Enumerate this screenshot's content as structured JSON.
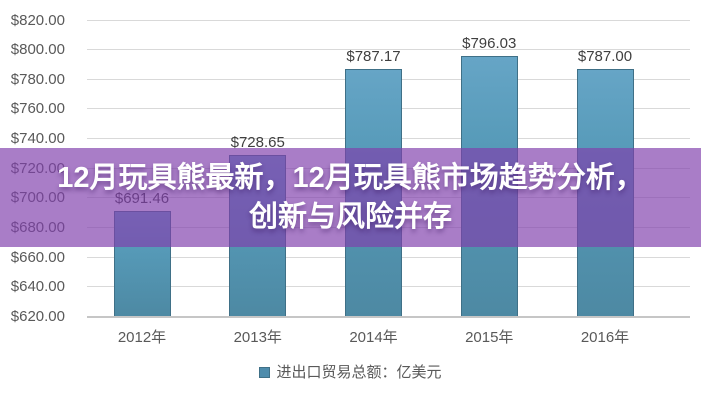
{
  "page": {
    "background": "#ffffff"
  },
  "banner": {
    "line1": "12月玩具熊最新，12月玩具熊市场趋势分析，",
    "line2": "创新与风险并存",
    "background": "rgba(128,63,172,0.68)",
    "text_color": "#ffffff"
  },
  "chart_data": {
    "type": "bar",
    "title": "",
    "xlabel": "",
    "ylabel": "",
    "categories": [
      "2012年",
      "2013年",
      "2014年",
      "2015年",
      "2016年"
    ],
    "values": [
      691.46,
      728.65,
      787.17,
      796.03,
      787.0
    ],
    "value_labels": [
      "$691.46",
      "$728.65",
      "$787.17",
      "$796.03",
      "$787.00"
    ],
    "ylim": [
      620,
      820
    ],
    "y_ticks": [
      820,
      800,
      780,
      760,
      740,
      720,
      700,
      680,
      660,
      640,
      620
    ],
    "y_tick_labels": [
      "$820.00",
      "$800.00",
      "$780.00",
      "$760.00",
      "$740.00",
      "$720.00",
      "$700.00",
      "$680.00",
      "$660.00",
      "$640.00",
      "$620.00"
    ],
    "grid": true,
    "legend": "进出口贸易总额：亿美元",
    "legend_position": "bottom",
    "colors": {
      "bar_top": "#66a5c6",
      "bar_bottom": "#4d89a3",
      "bar_border": "#3f7087",
      "gridline": "#d9d9d9",
      "axis_label": "#595959",
      "value_label": "#3f3f3f",
      "legend_marker": "#4e8cac"
    }
  }
}
